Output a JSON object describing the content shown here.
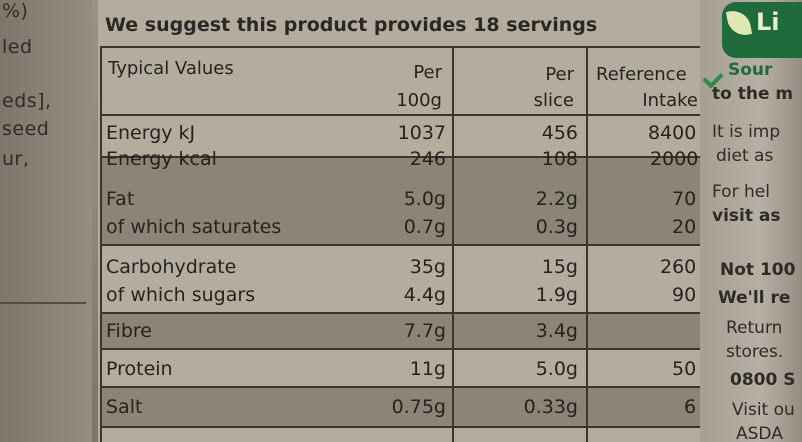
{
  "left_fragments": [
    "%)",
    "led",
    "eds],",
    "seed",
    "ur,"
  ],
  "servings_note": "We suggest this product provides 18 servings",
  "headers": {
    "typical": "Typical Values",
    "per100_line1": "Per",
    "per100_line2": "100g",
    "perslice_line1": "Per",
    "perslice_line2": "slice",
    "ri_line1": "Reference",
    "ri_line2": "Intake"
  },
  "rows": [
    {
      "label": "Energy kJ",
      "per100": "1037",
      "slice": "456",
      "ri": "8400"
    },
    {
      "label": "Energy kcal",
      "per100": "246",
      "slice": "108",
      "ri": "2000"
    },
    {
      "label": "Fat",
      "per100": "5.0g",
      "slice": "2.2g",
      "ri": "70"
    },
    {
      "label": "of which saturates",
      "per100": "0.7g",
      "slice": "0.3g",
      "ri": "20"
    },
    {
      "label": "Carbohydrate",
      "per100": "35g",
      "slice": "15g",
      "ri": "260"
    },
    {
      "label": "of which sugars",
      "per100": "4.4g",
      "slice": "1.9g",
      "ri": "90"
    },
    {
      "label": "Fibre",
      "per100": "7.7g",
      "slice": "3.4g",
      "ri": ""
    },
    {
      "label": "Protein",
      "per100": "11g",
      "slice": "5.0g",
      "ri": "50"
    },
    {
      "label": "Salt",
      "per100": "0.75g",
      "slice": "0.33g",
      "ri": "6"
    }
  ],
  "right_strip": {
    "logo": "Li",
    "lines": [
      "Sour",
      "to the m",
      "It is imp",
      "diet as",
      "For hel",
      "visit as",
      "Not 100",
      "We'll re",
      "Return",
      "stores.",
      "0800 S",
      "Visit ou",
      "ASDA"
    ]
  },
  "colors": {
    "brand_green": "#1f6b3c",
    "shade": "#8c8476",
    "card": "#b4ad9f"
  }
}
